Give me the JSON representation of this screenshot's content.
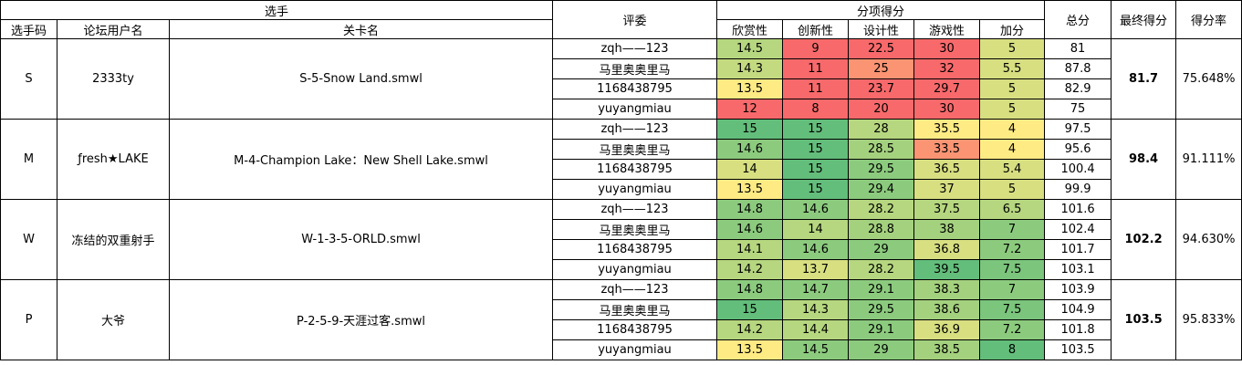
{
  "headers": {
    "player_group": "选手",
    "code": "选手码",
    "username": "论坛用户名",
    "level": "关卡名",
    "judge": "评委",
    "sub_group": "分项得分",
    "sub": [
      "欣赏性",
      "创新性",
      "设计性",
      "游戏性",
      "加分"
    ],
    "total": "总分",
    "final": "最终得分",
    "rate": "得分率"
  },
  "colors": {
    "green_dark": "#63be7b",
    "green_mid": "#8ccb7e",
    "green_light": "#b6d77f",
    "yellow_green": "#d7df81",
    "yellow": "#ffeb84",
    "orange": "#fa9473",
    "red": "#f8696b"
  },
  "players": [
    {
      "code": "S",
      "username": "2333ty",
      "level": "S-5-Snow Land.smwl",
      "final": "81.7",
      "rate": "75.648%",
      "rows": [
        {
          "judge": "zqh——123",
          "scores": [
            "14.5",
            "9",
            "22.5",
            "30",
            "5"
          ],
          "total": "81"
        },
        {
          "judge": "马里奥奥里马",
          "scores": [
            "14.3",
            "11",
            "25",
            "32",
            "5.5"
          ],
          "total": "87.8"
        },
        {
          "judge": "1168438795",
          "scores": [
            "13.5",
            "11",
            "23.7",
            "29.7",
            "5"
          ],
          "total": "82.9"
        },
        {
          "judge": "yuyangmiau",
          "scores": [
            "12",
            "8",
            "20",
            "30",
            "5"
          ],
          "total": "75"
        }
      ]
    },
    {
      "code": "M",
      "username": "ƒresh★LAKE",
      "level": "M-4-Champion Lake：New Shell Lake.smwl",
      "final": "98.4",
      "rate": "91.111%",
      "rows": [
        {
          "judge": "zqh——123",
          "scores": [
            "15",
            "15",
            "28",
            "35.5",
            "4"
          ],
          "total": "97.5"
        },
        {
          "judge": "马里奥奥里马",
          "scores": [
            "14.6",
            "15",
            "28.5",
            "33.5",
            "4"
          ],
          "total": "95.6"
        },
        {
          "judge": "1168438795",
          "scores": [
            "14",
            "15",
            "29.5",
            "36.5",
            "5.4"
          ],
          "total": "100.4"
        },
        {
          "judge": "yuyangmiau",
          "scores": [
            "13.5",
            "15",
            "29.4",
            "37",
            "5"
          ],
          "total": "99.9"
        }
      ]
    },
    {
      "code": "W",
      "username": "冻结的双重射手",
      "level": "W-1-3-5-ORLD.smwl",
      "final": "102.2",
      "rate": "94.630%",
      "rows": [
        {
          "judge": "zqh——123",
          "scores": [
            "14.8",
            "14.6",
            "28.2",
            "37.5",
            "6.5"
          ],
          "total": "101.6"
        },
        {
          "judge": "马里奥奥里马",
          "scores": [
            "14.6",
            "14",
            "28.8",
            "38",
            "7"
          ],
          "total": "102.4"
        },
        {
          "judge": "1168438795",
          "scores": [
            "14.1",
            "14.6",
            "29",
            "36.8",
            "7.2"
          ],
          "total": "101.7"
        },
        {
          "judge": "yuyangmiau",
          "scores": [
            "14.2",
            "13.7",
            "28.2",
            "39.5",
            "7.5"
          ],
          "total": "103.1"
        }
      ]
    },
    {
      "code": "P",
      "username": "大爷",
      "level": "P-2-5-9-天涯过客.smwl",
      "final": "103.5",
      "rate": "95.833%",
      "rows": [
        {
          "judge": "zqh——123",
          "scores": [
            "14.8",
            "14.7",
            "29.1",
            "38.3",
            "7"
          ],
          "total": "103.9"
        },
        {
          "judge": "马里奥奥里马",
          "scores": [
            "15",
            "14.3",
            "29.5",
            "38.6",
            "7.5"
          ],
          "total": "104.9"
        },
        {
          "judge": "1168438795",
          "scores": [
            "14.2",
            "14.4",
            "29.1",
            "36.9",
            "7.2"
          ],
          "total": "101.8"
        },
        {
          "judge": "yuyangmiau",
          "scores": [
            "13.5",
            "14.5",
            "29",
            "38.5",
            "8"
          ],
          "total": "103.5"
        }
      ]
    }
  ]
}
